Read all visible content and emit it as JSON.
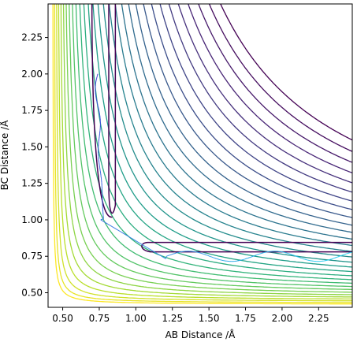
{
  "chart_data": {
    "type": "contour",
    "title": "",
    "xlabel": "AB Distance /Å",
    "ylabel": "BC Distance /Å",
    "xlim": [
      0.4,
      2.48
    ],
    "ylim": [
      0.4,
      2.48
    ],
    "x_ticks": [
      "0.50",
      "0.75",
      "1.00",
      "1.25",
      "1.50",
      "1.75",
      "2.00",
      "2.25"
    ],
    "y_ticks": [
      "0.50",
      "0.75",
      "1.00",
      "1.25",
      "1.50",
      "1.75",
      "2.00",
      "2.25"
    ],
    "grid": false,
    "colormap": [
      "#440154",
      "#482878",
      "#3e4989",
      "#31688e",
      "#26828e",
      "#1f9e89",
      "#35b779",
      "#6ece58",
      "#b5de2b",
      "#fde725"
    ],
    "trajectory": {
      "color_start": "#3b3bd8",
      "color_end": "#22d4f0",
      "start": [
        0.74,
        2.0
      ],
      "end": [
        2.48,
        0.77
      ]
    }
  }
}
